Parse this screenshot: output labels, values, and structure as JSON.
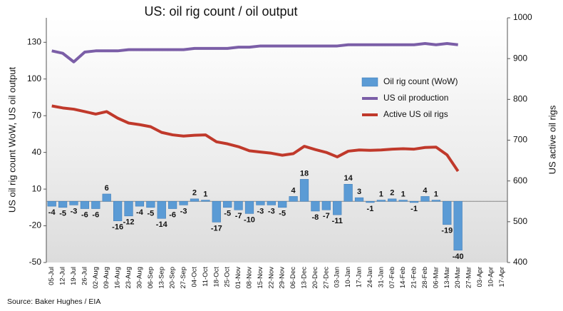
{
  "chart_data": {
    "type": "bar_line",
    "title": "US: oil rig count / oil output",
    "y_label": "US oil rig count WoW, US oil output",
    "y2_label": "US active oil rigs",
    "source": "Source: Baker Hughes / EIA",
    "categories": [
      "05-Jul",
      "12-Jul",
      "19-Jul",
      "26-Jul",
      "02-Aug",
      "09-Aug",
      "16-Aug",
      "23-Aug",
      "30-Aug",
      "06-Sep",
      "13-Sep",
      "20-Sep",
      "27-Sep",
      "04-Oct",
      "11-Oct",
      "18-Oct",
      "25-Oct",
      "01-Nov",
      "08-Nov",
      "15-Nov",
      "22-Nov",
      "29-Nov",
      "06-Dec",
      "13-Dec",
      "20-Dec",
      "27-Dec",
      "03-Jan",
      "10-Jan",
      "17-Jan",
      "24-Jan",
      "31-Jan",
      "07-Feb",
      "14-Feb",
      "21-Feb",
      "28-Feb",
      "06-Mar",
      "13-Mar",
      "20-Mar",
      "27-Mar",
      "03-Apr",
      "10-Apr",
      "17-Apr"
    ],
    "series": [
      {
        "name": "Oil rig count (WoW)",
        "kind": "bar",
        "color": "#5b9bd5",
        "values": [
          -4,
          -5,
          -3,
          -6,
          -6,
          6,
          -16,
          -12,
          -4,
          -5,
          -14,
          -6,
          -3,
          2,
          1,
          -17,
          -5,
          -7,
          -10,
          -3,
          -3,
          -5,
          4,
          18,
          -8,
          -7,
          -11,
          14,
          3,
          -1,
          1,
          2,
          1,
          -1,
          4,
          1,
          -19,
          -40,
          null,
          null,
          null,
          null
        ]
      },
      {
        "name": "US oil production",
        "kind": "line",
        "color": "#7b5ea7",
        "values": [
          123,
          121,
          114,
          122,
          123,
          123,
          123,
          124,
          124,
          124,
          124,
          124,
          124,
          125,
          125,
          125,
          125,
          126,
          126,
          127,
          127,
          127,
          127,
          127,
          127,
          127,
          127,
          128,
          128,
          128,
          128,
          128,
          128,
          128,
          129,
          128,
          129,
          128,
          null,
          null,
          null,
          null
        ]
      },
      {
        "name": "Active US oil rigs",
        "kind": "line",
        "axis": "y2",
        "color": "#c0392b",
        "values": [
          784,
          779,
          776,
          770,
          764,
          770,
          754,
          742,
          738,
          733,
          719,
          713,
          710,
          712,
          713,
          696,
          691,
          684,
          674,
          671,
          668,
          663,
          667,
          685,
          677,
          670,
          659,
          673,
          676,
          675,
          676,
          678,
          679,
          678,
          682,
          683,
          664,
          624,
          null,
          null,
          null,
          null
        ]
      }
    ],
    "ylim": [
      -50,
      150
    ],
    "yticks": [
      -50,
      -20,
      10,
      40,
      70,
      100,
      130
    ],
    "y2lim": [
      400,
      1000
    ],
    "y2ticks": [
      400,
      500,
      600,
      700,
      800,
      900,
      1000
    ],
    "legend": "upper right"
  }
}
